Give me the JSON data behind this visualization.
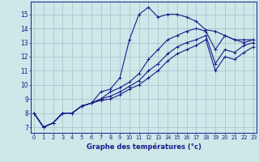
{
  "xlabel": "Graphe des températures (°c)",
  "x_ticks": [
    0,
    1,
    2,
    3,
    4,
    5,
    6,
    7,
    8,
    9,
    10,
    11,
    12,
    13,
    14,
    15,
    16,
    17,
    18,
    19,
    20,
    21,
    22,
    23
  ],
  "y_ticks": [
    7,
    8,
    9,
    10,
    11,
    12,
    13,
    14,
    15
  ],
  "xlim": [
    -0.3,
    23.3
  ],
  "ylim": [
    6.6,
    15.9
  ],
  "bg_color": "#cce8e8",
  "grid_color": "#aabccc",
  "line_color": "#1a1a8c",
  "lines": [
    [
      8.0,
      7.0,
      7.3,
      8.0,
      8.0,
      8.5,
      8.7,
      9.5,
      9.7,
      10.5,
      13.2,
      15.0,
      15.5,
      14.8,
      15.0,
      15.0,
      14.8,
      14.5,
      13.9,
      13.8,
      13.5,
      13.2,
      13.2,
      13.2
    ],
    [
      8.0,
      7.0,
      7.3,
      8.0,
      8.0,
      8.5,
      8.7,
      9.0,
      9.5,
      9.8,
      10.2,
      10.8,
      11.8,
      12.5,
      13.2,
      13.5,
      13.8,
      14.0,
      13.8,
      12.5,
      13.5,
      13.2,
      13.0,
      13.2
    ],
    [
      8.0,
      7.0,
      7.3,
      8.0,
      8.0,
      8.5,
      8.7,
      9.0,
      9.2,
      9.5,
      9.9,
      10.3,
      11.0,
      11.5,
      12.2,
      12.7,
      13.0,
      13.2,
      13.5,
      11.5,
      12.5,
      12.3,
      12.8,
      13.0
    ],
    [
      8.0,
      7.0,
      7.3,
      8.0,
      8.0,
      8.5,
      8.7,
      8.9,
      9.0,
      9.3,
      9.7,
      10.0,
      10.5,
      11.0,
      11.7,
      12.2,
      12.5,
      12.8,
      13.2,
      11.0,
      12.0,
      11.8,
      12.3,
      12.7
    ]
  ]
}
